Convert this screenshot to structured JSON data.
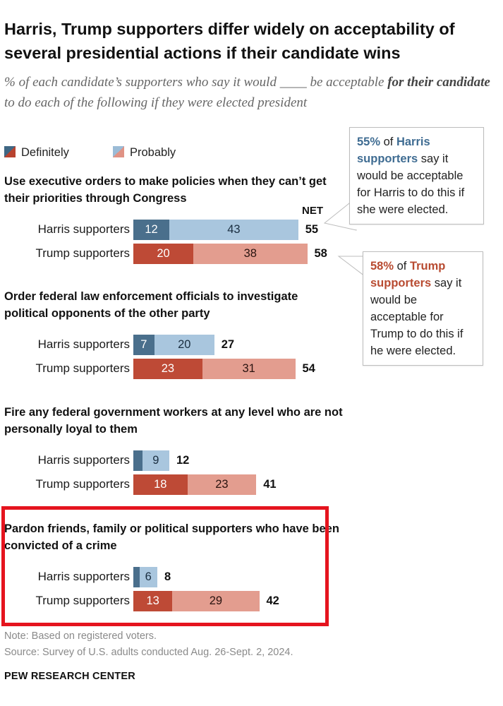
{
  "title": "Harris, Trump supporters differ widely on acceptability of several presidential actions if their candidate wins",
  "subtitle": {
    "pre": "% of each candidate’s supporters who say it would ____ be acceptable ",
    "bold": "for their candidate",
    "post": " to do each of the following if they were elected president"
  },
  "legend": {
    "definitely": "Definitely",
    "probably": "Probably"
  },
  "net_header": "NET",
  "callouts": {
    "harris": {
      "pct": "55%",
      "of": " of ",
      "group": "Harris supporters",
      "rest": " say it would be acceptable for Harris to do this if she were elected."
    },
    "trump": {
      "pct": "58%",
      "of": " of ",
      "group": "Trump supporters",
      "rest": " say it would be acceptable for Trump to do this if he were elected."
    }
  },
  "chart_data": {
    "type": "bar",
    "stacked": true,
    "orientation": "horizontal",
    "series_names": [
      "Definitely",
      "Probably"
    ],
    "questions": [
      {
        "label": "Use executive orders to make policies when they can’t get their priorities through Congress",
        "rows": [
          {
            "group": "Harris supporters",
            "definitely": 12,
            "probably": 43,
            "net": 55
          },
          {
            "group": "Trump supporters",
            "definitely": 20,
            "probably": 38,
            "net": 58
          }
        ]
      },
      {
        "label": "Order federal law enforcement officials to investigate political opponents of the other party",
        "rows": [
          {
            "group": "Harris supporters",
            "definitely": 7,
            "probably": 20,
            "net": 27
          },
          {
            "group": "Trump supporters",
            "definitely": 23,
            "probably": 31,
            "net": 54
          }
        ]
      },
      {
        "label": "Fire any federal government workers at any level who are not personally loyal to them",
        "rows": [
          {
            "group": "Harris supporters",
            "definitely": 3,
            "probably": 9,
            "net": 12
          },
          {
            "group": "Trump supporters",
            "definitely": 18,
            "probably": 23,
            "net": 41
          }
        ]
      },
      {
        "label": "Pardon friends, family or political supporters who have been convicted of a crime",
        "rows": [
          {
            "group": "Harris supporters",
            "definitely": 2,
            "probably": 6,
            "net": 8
          },
          {
            "group": "Trump supporters",
            "definitely": 13,
            "probably": 29,
            "net": 42
          }
        ]
      }
    ]
  },
  "notes": {
    "note": "Note: Based on registered voters.",
    "source": "Source: Survey of U.S. adults conducted Aug. 26-Sept. 2, 2024."
  },
  "brand": "PEW RESEARCH CENTER"
}
